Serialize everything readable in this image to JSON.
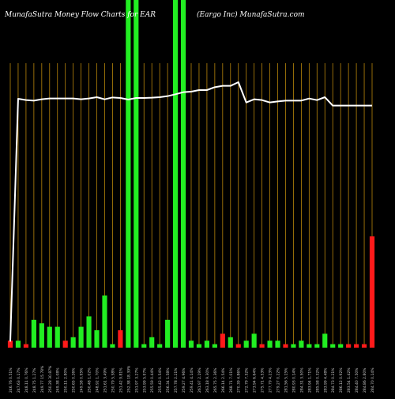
{
  "chart_data": {
    "type": "bar",
    "title_left": "MunafaSutra  Money Flow  Charts for EAR",
    "title_right": "(Eargo  Inc) MunafaSutra.com",
    "colors": {
      "background": "#000000",
      "gridline": "#b8860b",
      "up": "#22ee22",
      "down": "#ff1a1a",
      "price_line": "#ffffff",
      "tick_text": "#cccccc"
    },
    "categories": [
      "246.76 0.51%",
      "247.63 0.17%",
      "248.11 0.76%",
      "248.75 1.27%",
      "249.77 15.78%",
      "250.28 30.87%",
      "249.38 1.08%",
      "250.11 2.80%",
      "250.65 0.26%",
      "249.58 0.95%",
      "250.48 1.02%",
      "248.92 1.70%",
      "251.61 3.49%",
      "250.79 5.58%",
      "251.42 9.81%",
      "252.38 18.39%",
      "251.97 3.27%",
      "253.99 5.97%",
      "255.59 0.44%",
      "255.42 0.54%",
      "256.34 1.58%",
      "257.78 2.21%",
      "259.27 4.96%",
      "259.41 4.14%",
      "261.97 2.19%",
      "263.18 9.30%",
      "265.75 2.36%",
      "266.14 2.54%",
      "268.71 7.01%",
      "270.39 4.86%",
      "272.79 7.52%",
      "273.94 6.64%",
      "275.71 4.53%",
      "277.79 4.23%",
      "279.27 0.22%",
      "281.56 5.15%",
      "280.93 0.14%",
      "284.31 3.50%",
      "283.94 1.71%",
      "285.58 0.32%",
      "283.99 4.48%",
      "284.73 0.21%",
      "286.12 0.92%",
      "283.54 1.42%",
      "284.40 7.50%",
      "284.86 2.80%",
      "284.70 0.14%"
    ],
    "volumes": [
      2,
      2,
      1,
      8,
      7,
      6,
      6,
      2,
      3,
      6,
      9,
      5,
      15,
      1,
      5,
      100,
      100,
      1,
      3,
      1,
      8,
      100,
      100,
      2,
      1,
      2,
      1,
      4,
      3,
      1,
      2,
      4,
      1,
      2,
      2,
      1,
      1,
      2,
      1,
      1,
      4,
      1,
      1,
      1,
      1,
      1,
      32
    ],
    "directions": [
      "down",
      "up",
      "down",
      "up",
      "up",
      "up",
      "up",
      "down",
      "up",
      "up",
      "up",
      "up",
      "up",
      "up",
      "down",
      "up",
      "up",
      "up",
      "up",
      "up",
      "up",
      "up",
      "up",
      "up",
      "up",
      "up",
      "up",
      "down",
      "up",
      "down",
      "up",
      "up",
      "down",
      "up",
      "up",
      "down",
      "up",
      "up",
      "up",
      "up",
      "up",
      "up",
      "up",
      "down",
      "down",
      "down",
      "down"
    ],
    "price": [
      2.3,
      94.5,
      94.0,
      93.8,
      94.3,
      94.6,
      94.6,
      94.6,
      94.6,
      94.3,
      94.6,
      95.1,
      94.3,
      95.0,
      94.8,
      94.2,
      94.8,
      94.8,
      94.9,
      95.1,
      95.5,
      96.2,
      97.0,
      97.2,
      97.8,
      97.8,
      98.9,
      99.4,
      99.4,
      100.8,
      93.1,
      94.3,
      94.0,
      93.1,
      93.5,
      93.8,
      93.8,
      93.8,
      94.6,
      94.0,
      95.1,
      91.9,
      91.9,
      91.9,
      91.9,
      91.9,
      91.9
    ],
    "ylim_volume": [
      0,
      100
    ],
    "ylim_price": [
      0,
      120
    ],
    "grid": true
  }
}
